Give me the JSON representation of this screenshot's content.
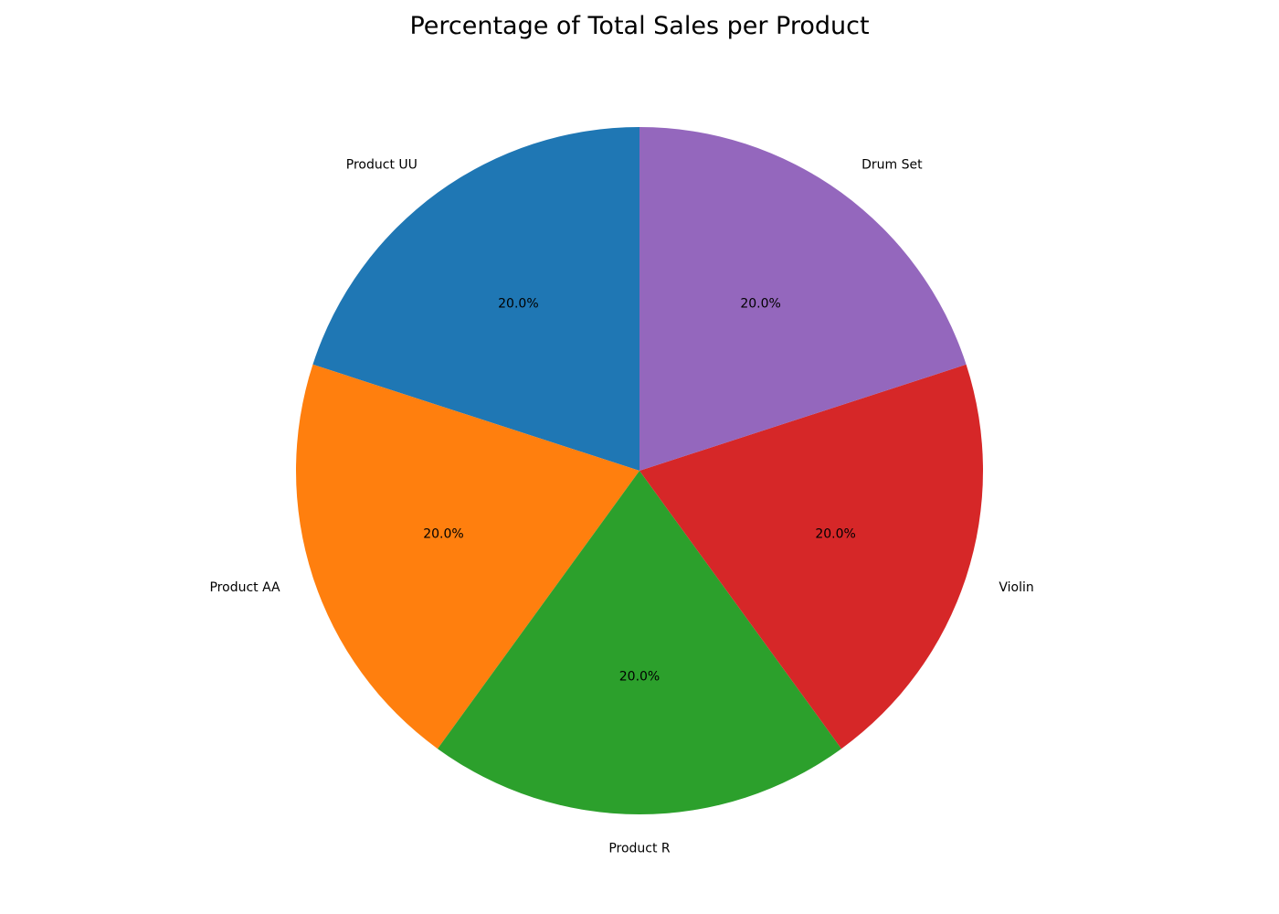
{
  "chart_data": {
    "type": "pie",
    "title": "Percentage of Total Sales per Product",
    "start_angle_deg": 90,
    "direction": "counterclockwise",
    "slices": [
      {
        "label": "Product UU",
        "value": 20.0,
        "pct_label": "20.0%",
        "color": "#1f77b4"
      },
      {
        "label": "Product AA",
        "value": 20.0,
        "pct_label": "20.0%",
        "color": "#ff7f0e"
      },
      {
        "label": "Product R",
        "value": 20.0,
        "pct_label": "20.0%",
        "color": "#2ca02c"
      },
      {
        "label": "Violin",
        "value": 20.0,
        "pct_label": "20.0%",
        "color": "#d62728"
      },
      {
        "label": "Drum Set",
        "value": 20.0,
        "pct_label": "20.0%",
        "color": "#9467bd"
      }
    ]
  }
}
